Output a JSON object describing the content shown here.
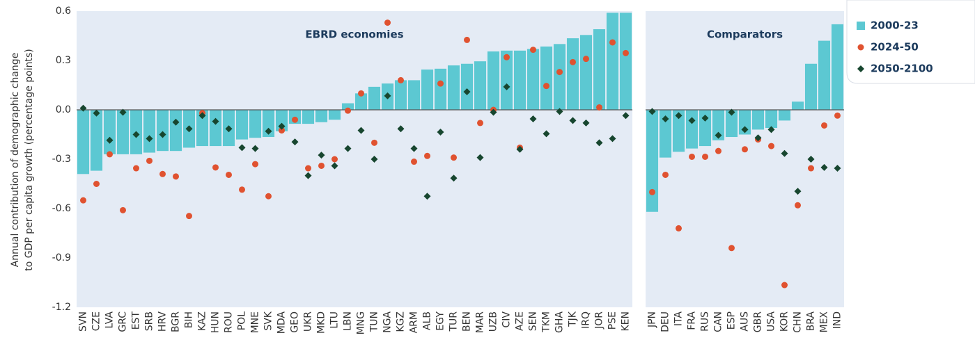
{
  "chart_data": {
    "type": "bar",
    "ylabel": [
      "Annual contribution of demographic change",
      "to GDP per capita growth (percentage points)"
    ],
    "annotations": [
      "EBRD economies",
      "Comparators"
    ],
    "categories": [
      "SVN",
      "CZE",
      "LVA",
      "GRC",
      "EST",
      "SRB",
      "HRV",
      "BGR",
      "BIH",
      "KAZ",
      "HUN",
      "ROU",
      "POL",
      "MNE",
      "SVK",
      "MDA",
      "GEO",
      "UKR",
      "MKD",
      "LTU",
      "LBN",
      "MNG",
      "TUN",
      "NGA",
      "KGZ",
      "ARM",
      "ALB",
      "EGY",
      "TUR",
      "BEN",
      "MAR",
      "UZB",
      "CIV",
      "AZE",
      "SEN",
      "TKM",
      "GHA",
      "TJK",
      "IRQ",
      "JOR",
      "PSE",
      "KEN",
      null,
      "JPN",
      "DEU",
      "ITA",
      "FRA",
      "RUS",
      "CAN",
      "ESP",
      "AUS",
      "GBR",
      "USA",
      "KOR",
      "CHN",
      "BRA",
      "MEX",
      "IND"
    ],
    "series": [
      {
        "name": "2000-23",
        "type": "bar",
        "color": "#5cc8d2",
        "values": [
          -0.39,
          -0.37,
          -0.27,
          -0.27,
          -0.27,
          -0.26,
          -0.25,
          -0.25,
          -0.23,
          -0.22,
          -0.22,
          -0.22,
          -0.18,
          -0.17,
          -0.165,
          -0.13,
          -0.085,
          -0.085,
          -0.075,
          -0.06,
          0.04,
          0.1,
          0.14,
          0.16,
          0.18,
          0.18,
          0.245,
          0.25,
          0.27,
          0.28,
          0.295,
          0.355,
          0.36,
          0.36,
          0.37,
          0.385,
          0.4,
          0.435,
          0.455,
          0.49,
          0.59,
          0.59,
          null,
          -0.62,
          -0.29,
          -0.255,
          -0.235,
          -0.22,
          -0.185,
          -0.165,
          -0.15,
          -0.12,
          -0.11,
          -0.065,
          0.05,
          0.28,
          0.42,
          0.52
        ]
      },
      {
        "name": "2024-50",
        "type": "scatter",
        "marker": "circle",
        "color": "#e05230",
        "values": [
          -0.55,
          -0.45,
          -0.27,
          -0.61,
          -0.355,
          -0.31,
          -0.39,
          -0.405,
          -0.645,
          -0.02,
          -0.35,
          -0.395,
          -0.485,
          -0.33,
          -0.525,
          -0.125,
          -0.06,
          -0.355,
          -0.34,
          -0.3,
          -0.005,
          0.1,
          -0.2,
          0.53,
          0.18,
          -0.315,
          -0.28,
          0.16,
          -0.29,
          0.425,
          -0.08,
          0,
          0.32,
          -0.23,
          0.365,
          0.145,
          0.23,
          0.29,
          0.31,
          0.015,
          0.41,
          0.345,
          null,
          -0.5,
          -0.395,
          -0.72,
          -0.285,
          -0.285,
          -0.25,
          -0.84,
          -0.24,
          -0.18,
          -0.22,
          -1.065,
          -0.58,
          -0.355,
          -0.095,
          -0.035
        ]
      },
      {
        "name": "2050-2100",
        "type": "scatter",
        "marker": "diamond",
        "color": "#17462f",
        "values": [
          0.01,
          -0.02,
          -0.185,
          -0.015,
          -0.15,
          -0.175,
          -0.15,
          -0.075,
          -0.115,
          -0.035,
          -0.07,
          -0.115,
          -0.23,
          -0.235,
          -0.13,
          -0.1,
          -0.195,
          -0.4,
          -0.275,
          -0.34,
          -0.235,
          -0.125,
          -0.3,
          0.085,
          -0.115,
          -0.235,
          -0.525,
          -0.135,
          -0.415,
          0.11,
          -0.29,
          -0.015,
          0.14,
          -0.24,
          -0.055,
          -0.145,
          -0.01,
          -0.065,
          -0.08,
          -0.2,
          -0.175,
          -0.035,
          null,
          -0.01,
          -0.055,
          -0.035,
          -0.065,
          -0.05,
          -0.155,
          -0.015,
          -0.12,
          -0.17,
          -0.12,
          -0.265,
          -0.495,
          -0.3,
          -0.35,
          -0.355
        ]
      }
    ],
    "ylim": [
      -1.2,
      0.6
    ],
    "yticks": [
      0.6,
      0.3,
      {
        "value": 0,
        "label": "0.0"
      },
      -0.3,
      -0.6,
      -0.9,
      -1.2
    ],
    "grid": false,
    "legend": "top-right"
  }
}
